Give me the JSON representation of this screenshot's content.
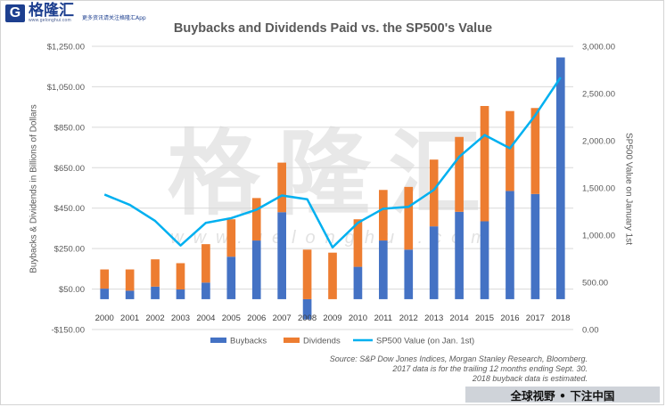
{
  "brand": {
    "name": "格隆汇",
    "url": "www.gelonghui.com",
    "tagline": "更多资讯请关注格隆汇App",
    "banner": "全球视野 • 下注中国"
  },
  "watermark": {
    "text": "格隆汇",
    "url": "www.gelonghui.com"
  },
  "colors": {
    "buybacks": "#4472c4",
    "dividends": "#ed7d31",
    "sp500": "#00b0f0",
    "grid": "#d9d9d9",
    "text": "#595959"
  },
  "source_lines": [
    "Source: S&P Dow Jones Indices, Morgan Stanley Research, Bloomberg.",
    "2017 data is for the trailing 12 months ending Sept. 30.",
    "2018 buyback data is estimated."
  ],
  "chart_data": {
    "type": "bar",
    "stacked": true,
    "title": "Buybacks and Dividends Paid vs. the SP500's Value",
    "ylabel": "Buybacks & Dividends in Billions of Dollars",
    "y2label": "SP500 Value on January 1st",
    "ylim": [
      -150,
      1250
    ],
    "y2lim": [
      0,
      3000
    ],
    "yticks": [
      -150,
      50,
      250,
      450,
      650,
      850,
      1050,
      1250
    ],
    "ytick_labels": [
      "-$150.00",
      "$50.00",
      "$250.00",
      "$450.00",
      "$650.00",
      "$850.00",
      "$1,050.00",
      "$1,250.00"
    ],
    "y2ticks": [
      0,
      500,
      1000,
      1500,
      2000,
      2500,
      3000
    ],
    "y2tick_labels": [
      "0.00",
      "500.00",
      "1,000.00",
      "1,500.00",
      "2,000.00",
      "2,500.00",
      "3,000.00"
    ],
    "categories": [
      "2000",
      "2001",
      "2002",
      "2003",
      "2004",
      "2005",
      "2006",
      "2007",
      "2008",
      "2009",
      "2010",
      "2011",
      "2012",
      "2013",
      "2014",
      "2015",
      "2016",
      "2017",
      "2018"
    ],
    "series": [
      {
        "name": "Buybacks",
        "type": "bar",
        "axis": "left",
        "values": [
          52,
          42,
          62,
          48,
          82,
          210,
          290,
          430,
          -100,
          0,
          160,
          290,
          245,
          360,
          432,
          385,
          535,
          520,
          1195
        ]
      },
      {
        "name": "Dividends",
        "type": "bar",
        "axis": "left",
        "values": [
          95,
          105,
          135,
          130,
          190,
          185,
          210,
          245,
          245,
          230,
          235,
          250,
          310,
          330,
          370,
          570,
          395,
          425,
          0
        ]
      },
      {
        "name": "SP500 Value (on Jan. 1st)",
        "type": "line",
        "axis": "right",
        "values": [
          1430,
          1320,
          1150,
          890,
          1130,
          1180,
          1270,
          1420,
          1380,
          870,
          1130,
          1280,
          1300,
          1480,
          1830,
          2060,
          1920,
          2270,
          2670
        ]
      }
    ],
    "legend_position": "bottom",
    "grid": true
  }
}
